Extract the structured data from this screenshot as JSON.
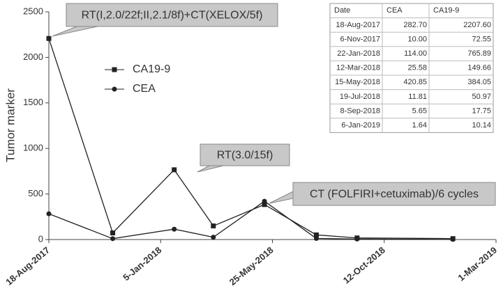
{
  "chart_data": {
    "type": "line",
    "ylabel": "Tumor marker",
    "x": [
      "18-Aug-2017",
      "6-Nov-2017",
      "22-Jan-2018",
      "12-Mar-2018",
      "15-May-2018",
      "19-Jul-2018",
      "8-Sep-2018",
      "6-Jan-2019"
    ],
    "series": [
      {
        "name": "CA19-9",
        "color": "#222222",
        "marker": "square",
        "values": [
          2207.6,
          72.55,
          765.89,
          149.66,
          384.05,
          50.97,
          17.75,
          10.14
        ],
        "value_labels": [
          "2207.60",
          "72.55",
          "765.89",
          "149.66",
          "384.05",
          "50.97",
          "17.75",
          "10.14"
        ]
      },
      {
        "name": "CEA",
        "color": "#222222",
        "marker": "circle",
        "values": [
          282.7,
          10.0,
          114.0,
          25.58,
          420.85,
          11.81,
          5.65,
          1.64
        ],
        "value_labels": [
          "282.70",
          "10.00",
          "114.00",
          "25.58",
          "420.85",
          "11.81",
          "5.65",
          "1.64"
        ]
      }
    ],
    "xlim": [
      "18-Aug-2017",
      "1-Mar-2019"
    ],
    "xticks": [
      "18-Aug-2017",
      "5-Jan-2018",
      "25-May-2018",
      "12-Oct-2018",
      "1-Mar-2019"
    ],
    "ylim": [
      0,
      2500
    ],
    "yticks": [
      0,
      500,
      1000,
      1500,
      2000,
      2500
    ],
    "grid": false,
    "annotations": [
      "RT(I,2.0/22f;II,2.1/8f)+CT(XELOX/5f)",
      "RT(3.0/15f)",
      "CT (FOLFIRI+cetuximab)/6 cycles"
    ],
    "table_header": "Date"
  }
}
